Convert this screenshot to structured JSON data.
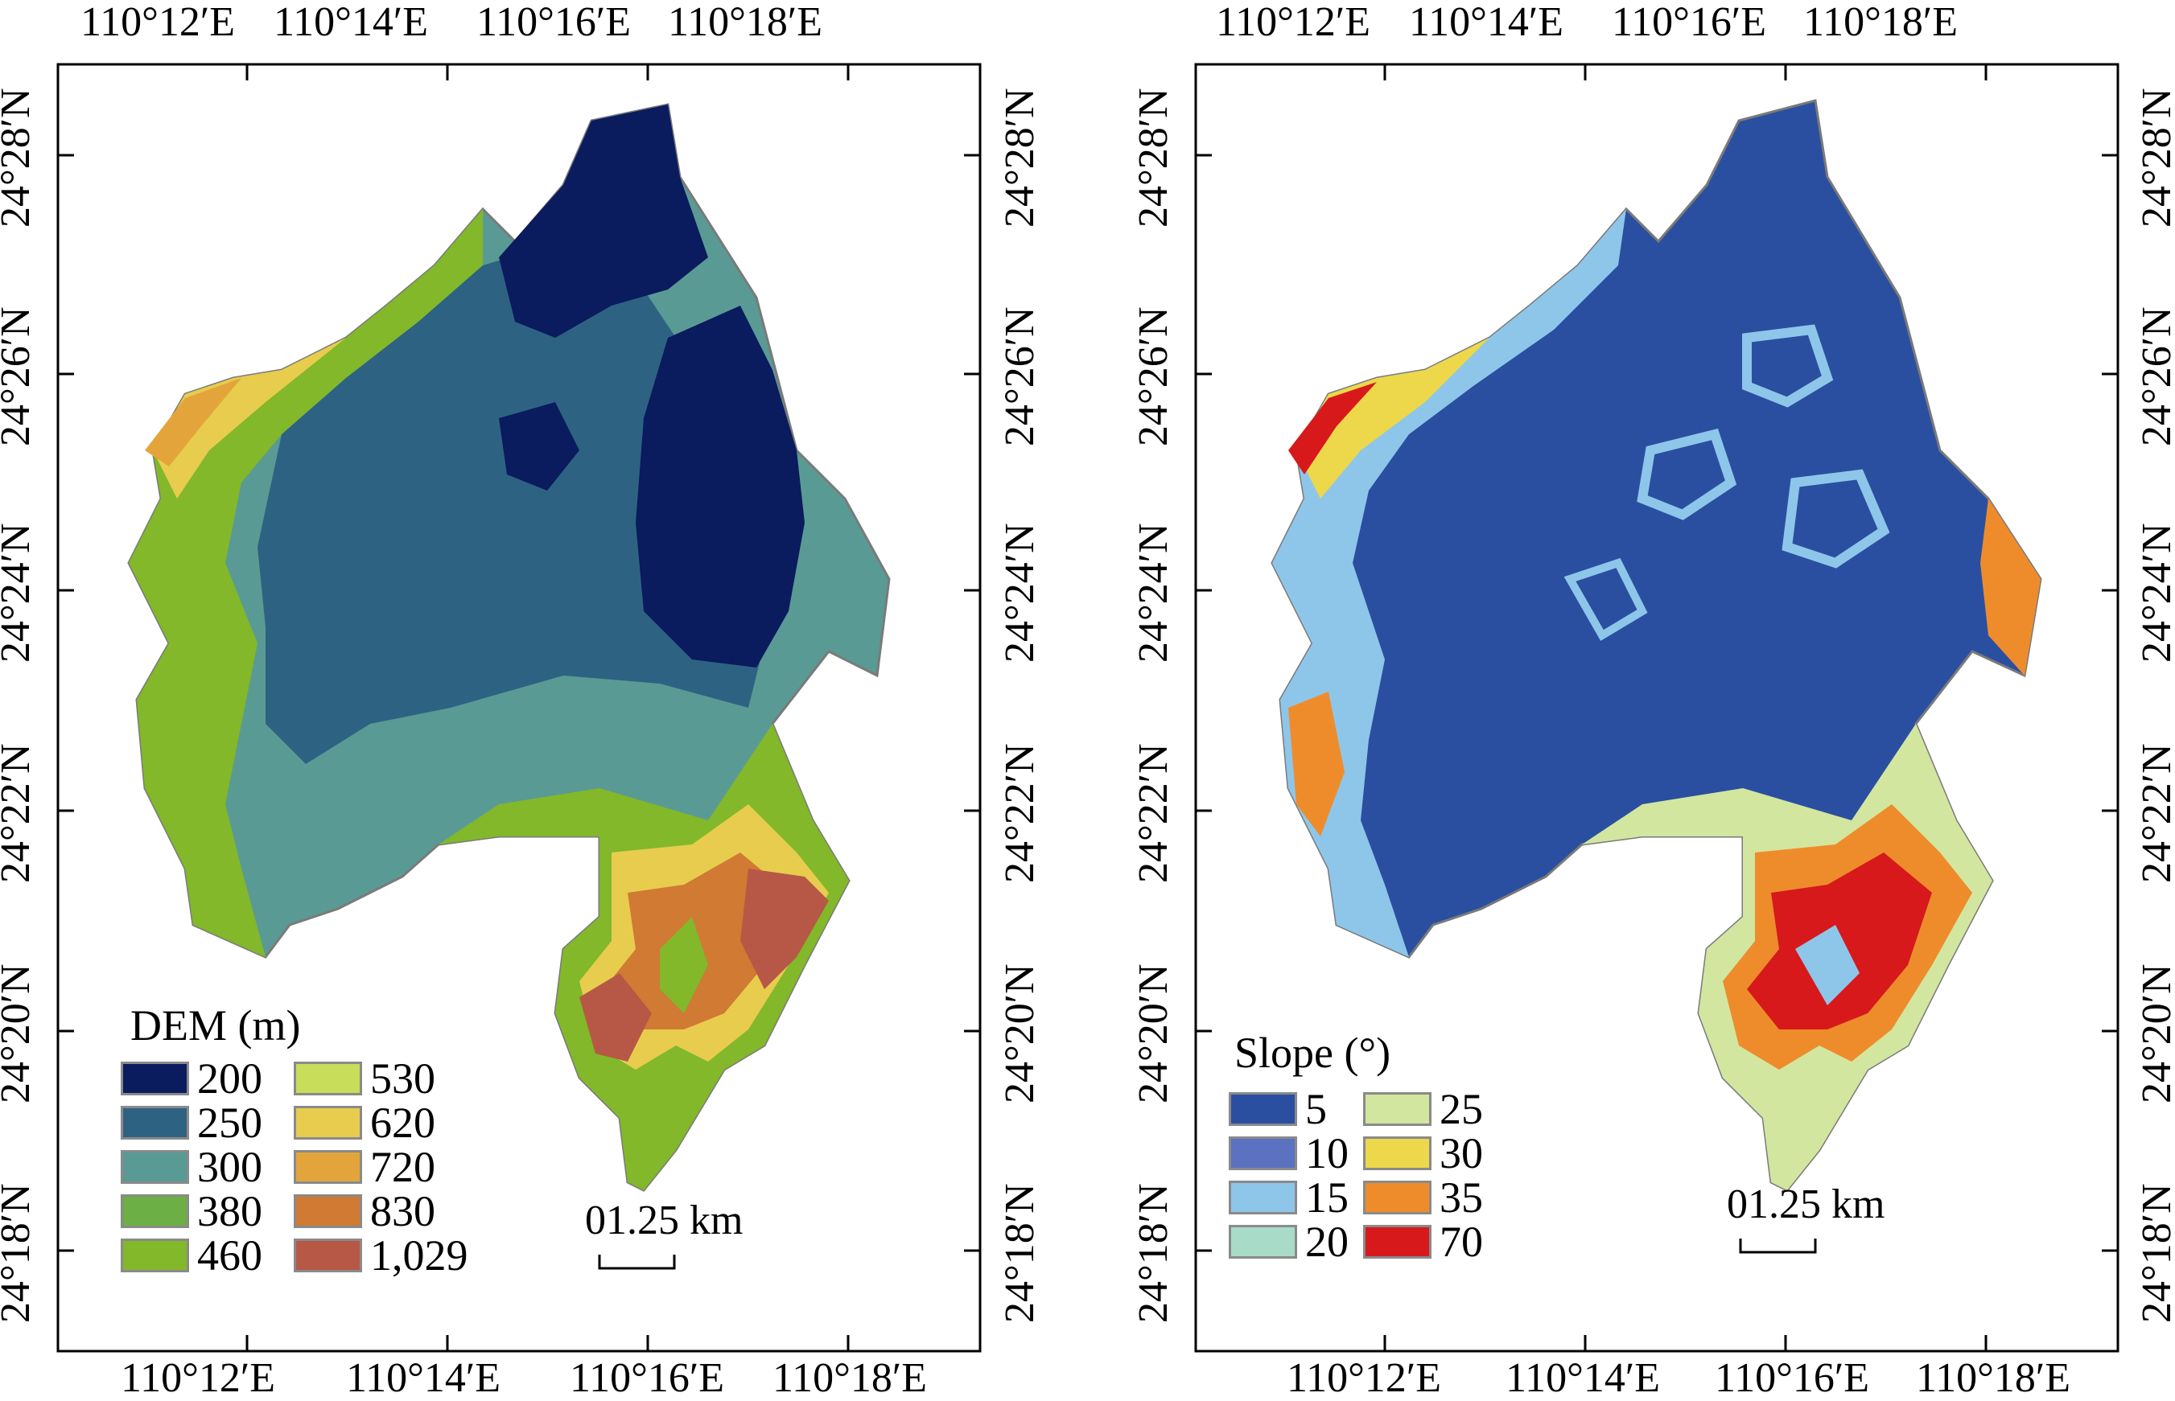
{
  "dem_map": {
    "top_lon_labels": [
      "110°12′E",
      "110°14′E",
      "110°16′E",
      "110°18′E"
    ],
    "bottom_lon_labels": [
      "110°12′E",
      "110°14′E",
      "110°16′E",
      "110°18′E"
    ],
    "left_lat_labels": [
      "24°28′N",
      "24°26′N",
      "24°24′N",
      "24°22′N",
      "24°20′N",
      "24°18′N"
    ],
    "right_lat_labels": [
      "24°28′N",
      "24°26′N",
      "24°24′N",
      "24°22′N",
      "24°20′N",
      "24°18′N"
    ],
    "legend": {
      "title": "DEM (m)",
      "items": [
        {
          "label": "200",
          "color": "#0a1b5e"
        },
        {
          "label": "250",
          "color": "#2e6283"
        },
        {
          "label": "300",
          "color": "#5a9a94"
        },
        {
          "label": "380",
          "color": "#6caf45"
        },
        {
          "label": "460",
          "color": "#82b82a"
        },
        {
          "label": "530",
          "color": "#c8dd5a"
        },
        {
          "label": "620",
          "color": "#e8cc4e"
        },
        {
          "label": "720",
          "color": "#e3a53b"
        },
        {
          "label": "830",
          "color": "#d07a34"
        },
        {
          "label": "1,029",
          "color": "#b75846"
        }
      ]
    },
    "scale_bar_label": "01.25 km"
  },
  "slope_map": {
    "top_lon_labels": [
      "110°12′E",
      "110°14′E",
      "110°16′E",
      "110°18′E"
    ],
    "bottom_lon_labels": [
      "110°12′E",
      "110°14′E",
      "110°16′E",
      "110°18′E"
    ],
    "left_lat_labels": [
      "24°28′N",
      "24°26′N",
      "24°24′N",
      "24°22′N",
      "24°20′N",
      "24°18′N"
    ],
    "right_lat_labels": [
      "24°28′N",
      "24°26′N",
      "24°24′N",
      "24°22′N",
      "24°20′N",
      "24°18′N"
    ],
    "legend": {
      "title": "Slope (°)",
      "items": [
        {
          "label": "5",
          "color": "#2a4fa0"
        },
        {
          "label": "10",
          "color": "#5a72c0"
        },
        {
          "label": "15",
          "color": "#8ec6ea"
        },
        {
          "label": "20",
          "color": "#a8dcc8"
        },
        {
          "label": "25",
          "color": "#d2e6a0"
        },
        {
          "label": "30",
          "color": "#ecd84a"
        },
        {
          "label": "35",
          "color": "#ee8c2c"
        },
        {
          "label": "70",
          "color": "#d7191c"
        }
      ]
    },
    "scale_bar_label": "01.25 km"
  }
}
